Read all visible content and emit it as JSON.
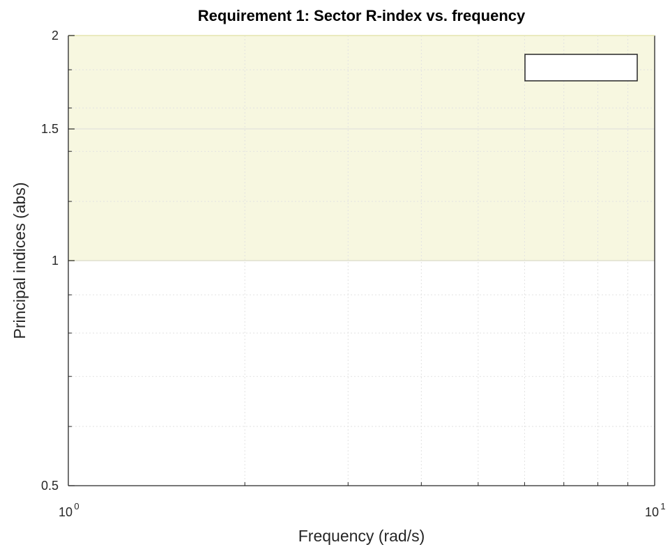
{
  "chart_data": {
    "type": "line",
    "title": "Requirement 1: Sector R-index vs. frequency",
    "xlabel": "Frequency (rad/s)",
    "ylabel": "Principal indices (abs)",
    "xscale": "log",
    "yscale": "log",
    "xlim": [
      1,
      10
    ],
    "ylim": [
      0.5,
      2
    ],
    "x_ticks": [
      {
        "value": 1,
        "base": "10",
        "exp": "0"
      },
      {
        "value": 10,
        "base": "10",
        "exp": "1"
      }
    ],
    "y_ticks": [
      {
        "value": 0.5,
        "label": "0.5"
      },
      {
        "value": 1,
        "label": "1"
      },
      {
        "value": 1.5,
        "label": "1.5"
      },
      {
        "value": 2,
        "label": "2"
      }
    ],
    "x_minor_grid": [
      2,
      3,
      4,
      5,
      6,
      7,
      8,
      9
    ],
    "y_minor_grid": [
      0.6,
      0.7,
      0.8,
      0.9,
      1.2,
      1.4,
      1.6,
      1.8
    ],
    "grid": true,
    "shaded_region": {
      "y_min": 1,
      "y_max": 2,
      "color": "#f7f7e0",
      "edge_color": "#e6e6b3"
    },
    "legend": {
      "location": "top-right",
      "entries": []
    },
    "series": []
  },
  "colors": {
    "background": "#ffffff",
    "axis": "#262626",
    "grid_major": "#dcdcdc",
    "grid_minor": "#e2e2e2"
  }
}
